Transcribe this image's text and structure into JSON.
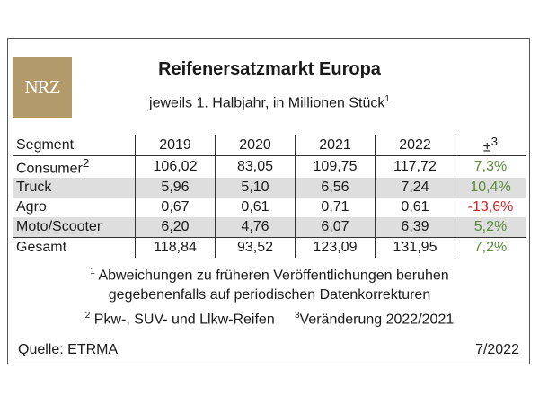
{
  "logo": {
    "text": "NRZ"
  },
  "chart_data": {
    "type": "table",
    "title": "Reifenersatzmarkt Europa",
    "subtitle": "jeweils 1. Halbjahr, in Millionen Stück",
    "subtitle_sup": "1",
    "columns": [
      "Segment",
      "2019",
      "2020",
      "2021",
      "2022",
      "±"
    ],
    "change_sup": "3",
    "rows": [
      {
        "segment": "Consumer",
        "sup": "2",
        "values": [
          "106,02",
          "83,05",
          "109,75",
          "117,72"
        ],
        "change": "7,3%",
        "change_sign": "pos",
        "shaded": false
      },
      {
        "segment": "Truck",
        "sup": "",
        "values": [
          "5,96",
          "5,10",
          "6,56",
          "7,24"
        ],
        "change": "10,4%",
        "change_sign": "pos",
        "shaded": true
      },
      {
        "segment": "Agro",
        "sup": "",
        "values": [
          "0,67",
          "0,61",
          "0,71",
          "0,61"
        ],
        "change": "-13,6%",
        "change_sign": "neg",
        "shaded": false
      },
      {
        "segment": "Moto/Scooter",
        "sup": "",
        "values": [
          "6,20",
          "4,76",
          "6,07",
          "6,39"
        ],
        "change": "5,2%",
        "change_sign": "pos",
        "shaded": true
      }
    ],
    "total": {
      "segment": "Gesamt",
      "values": [
        "118,84",
        "93,52",
        "123,09",
        "131,95"
      ],
      "change": "7,2%",
      "change_sign": "pos"
    },
    "colors": {
      "positive": "#5a8a3a",
      "negative": "#d42020",
      "shade": "#dedede",
      "logo": "#b39a6a"
    }
  },
  "footnotes": {
    "fn1_sup": "1",
    "fn1_line1": "Abweichungen zu früheren Veröffentlichungen beruhen",
    "fn1_line2": "gegebenenfalls auf periodischen Datenkorrekturen",
    "fn2_sup": "2",
    "fn2": "Pkw-, SUV- und Llkw-Reifen",
    "fn3_sup": "3",
    "fn3": "Veränderung 2022/2021"
  },
  "source": "Quelle: ETRMA",
  "date": "7/2022"
}
